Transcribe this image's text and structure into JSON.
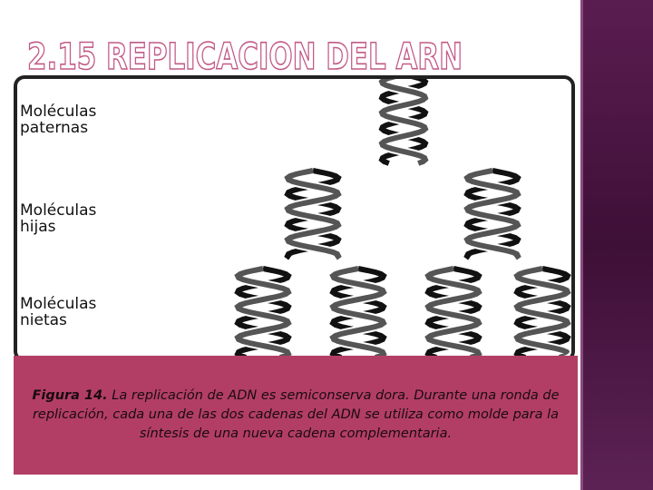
{
  "title": "2.15 REPLICACION DEL ARN",
  "figure": {
    "labels": [
      [
        "Moléculas",
        "paternas"
      ],
      [
        "Moléculas",
        "hijas"
      ],
      [
        "Moléculas",
        "nietas"
      ]
    ]
  },
  "caption": {
    "figure_label": "Figura 14.",
    "text": "La replicación de ADN es semiconserva dora. Durante una ronda de replicación, cada una de las dos cadenas del ADN se utiliza como molde para la síntesis de una nueva cadena complementaria."
  }
}
